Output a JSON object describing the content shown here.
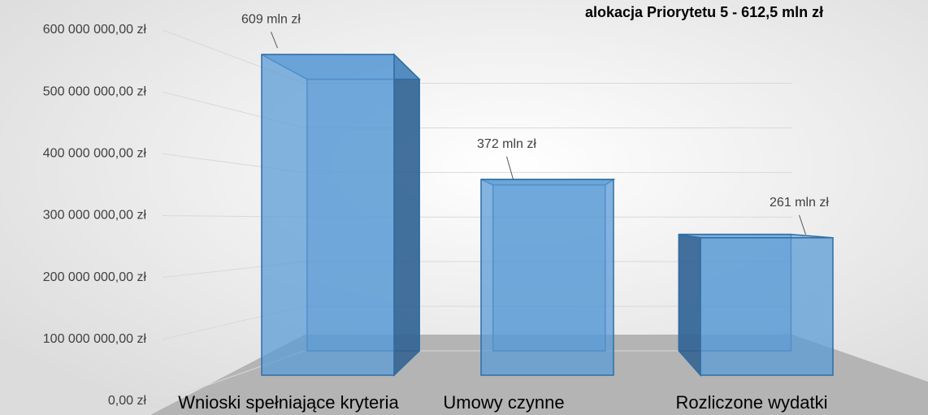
{
  "chart_data": {
    "type": "bar3d",
    "annotation": "alokacja Priorytetu 5 - 612,5 mln zł",
    "categories": [
      "Wnioski spełniające kryteria",
      "Umowy czynne",
      "Rozliczone wydatki"
    ],
    "values": [
      609000000,
      372000000,
      261000000
    ],
    "value_labels": [
      "609 mln zł",
      "372 mln zł",
      "261 mln zł"
    ],
    "color": "#5b9bd5",
    "ylim": [
      0,
      600000000
    ],
    "yticks": [
      {
        "value": 0,
        "label": "0,00 zł"
      },
      {
        "value": 100000000,
        "label": "100 000 000,00 zł"
      },
      {
        "value": 200000000,
        "label": "200 000 000,00 zł"
      },
      {
        "value": 300000000,
        "label": "300 000 000,00 zł"
      },
      {
        "value": 400000000,
        "label": "400 000 000,00 zł"
      },
      {
        "value": 500000000,
        "label": "500 000 000,00 zł"
      },
      {
        "value": 600000000,
        "label": "600 000 000,00 zł"
      }
    ],
    "grid": true
  }
}
